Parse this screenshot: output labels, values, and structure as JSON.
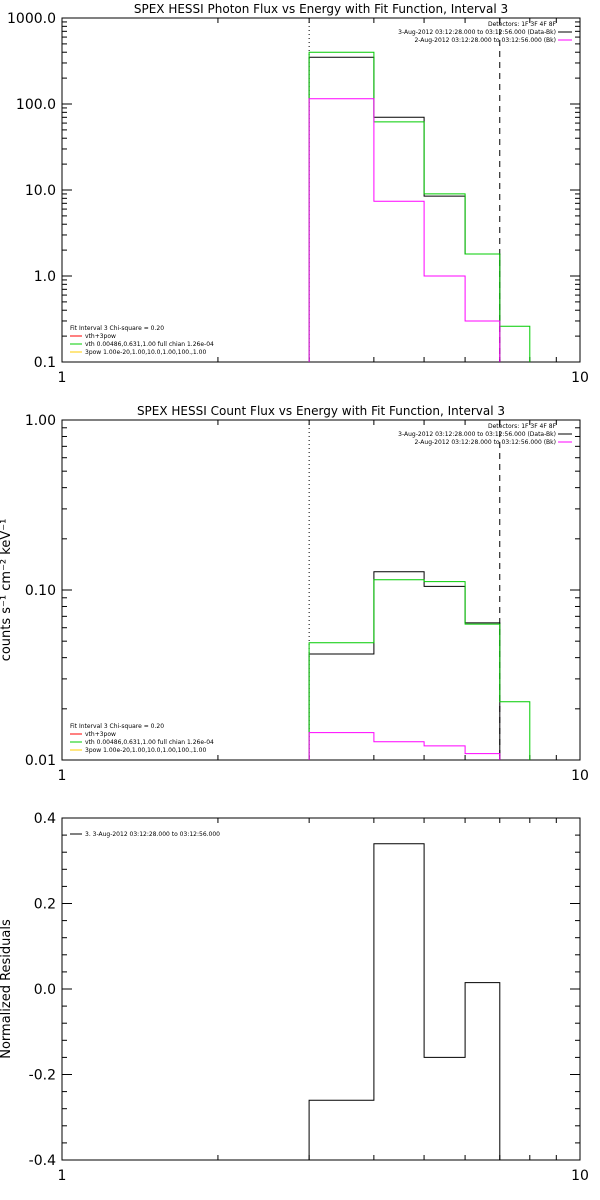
{
  "chart_data": [
    {
      "type": "line",
      "title": "SPEX HESSI Photon Flux vs Energy with Fit Function, Interval 3",
      "xscale": "log",
      "yscale": "log",
      "xlim": [
        1,
        10
      ],
      "ylim": [
        0.1,
        1000
      ],
      "xticks": [
        "1",
        "10"
      ],
      "yticks": [
        "0.1",
        "1.0",
        "10.0",
        "100.0",
        "1000.0"
      ],
      "vlines": [
        {
          "x": 3,
          "style": "dotted",
          "color": "#000000"
        },
        {
          "x": 7,
          "style": "dashed",
          "color": "#000000"
        }
      ],
      "legend_topright": {
        "lines": [
          {
            "text": "Detectors: 1F 3F 4F 8F",
            "color": null
          },
          {
            "text": "3-Aug-2012 03:12:28.000 to 03:12:56.000 (Data-Bk)",
            "color": "#000000"
          },
          {
            "text": "2-Aug-2012 03:12:28.000 to 03:12:56.000 (Bk)",
            "color": "#ff00ff"
          }
        ]
      },
      "legend_bottomleft": {
        "lines": [
          {
            "text": "Fit Interval 3   Chi-square = 0.20",
            "color": null
          },
          {
            "text": "vth+3pow",
            "color": "#ff0000"
          },
          {
            "text": "vth 0.00486,0.631,1.00   full chian 1.26e-04",
            "color": "#00cc00"
          },
          {
            "text": "3pow 1.00e-20,1.00,10.0,1.00,100.,1.00",
            "color": "#ffcc00"
          }
        ]
      },
      "edges": [
        3,
        4,
        5,
        6,
        7,
        8
      ],
      "series": [
        {
          "color": "#000000",
          "values": [
            350,
            70,
            8.5,
            1.8,
            null
          ]
        },
        {
          "color": "#00cc00",
          "values": [
            400,
            62,
            9,
            1.8,
            0.26
          ]
        },
        {
          "color": "#ff00ff",
          "values": [
            115,
            7.4,
            1.0,
            0.3,
            null
          ]
        }
      ]
    },
    {
      "type": "line",
      "title": "SPEX HESSI Count Flux vs Energy with Fit Function, Interval 3",
      "ylabel": "counts s⁻¹ cm⁻² keV⁻¹",
      "xscale": "log",
      "yscale": "log",
      "xlim": [
        1,
        10
      ],
      "ylim": [
        0.01,
        1.0
      ],
      "xticks": [
        "1",
        "10"
      ],
      "yticks": [
        "0.01",
        "0.10",
        "1.00"
      ],
      "vlines": [
        {
          "x": 3,
          "style": "dotted",
          "color": "#000000"
        },
        {
          "x": 7,
          "style": "dashed",
          "color": "#000000"
        }
      ],
      "legend_topright": {
        "lines": [
          {
            "text": "Detectors: 1F 3F 4F 8F",
            "color": null
          },
          {
            "text": "3-Aug-2012 03:12:28.000 to 03:12:56.000 (Data-Bk)",
            "color": "#000000"
          },
          {
            "text": "2-Aug-2012 03:12:28.000 to 03:12:56.000 (Bk)",
            "color": "#ff00ff"
          }
        ]
      },
      "legend_bottomleft": {
        "lines": [
          {
            "text": "Fit Interval 3   Chi-square = 0.20",
            "color": null
          },
          {
            "text": "vth+3pow",
            "color": "#ff0000"
          },
          {
            "text": "vth 0.00486,0.631,1.00   full chian 1.26e-04",
            "color": "#00cc00"
          },
          {
            "text": "3pow 1.00e-20,1.00,10.0,1.00,100.,1.00",
            "color": "#ffcc00"
          }
        ]
      },
      "edges": [
        3,
        4,
        5,
        6,
        7,
        8
      ],
      "series": [
        {
          "color": "#000000",
          "values": [
            0.042,
            0.128,
            0.105,
            0.064,
            null
          ]
        },
        {
          "color": "#00cc00",
          "values": [
            0.049,
            0.115,
            0.112,
            0.063,
            0.022
          ]
        },
        {
          "color": "#ff00ff",
          "values": [
            0.0145,
            0.0128,
            0.0121,
            0.0109,
            null
          ]
        }
      ]
    },
    {
      "type": "line",
      "ylabel": "Normalized Residuals",
      "xscale": "log",
      "yscale": "linear",
      "xlim": [
        1,
        10
      ],
      "ylim": [
        -0.4,
        0.4
      ],
      "xticks": [
        "1",
        "10"
      ],
      "yticks": [
        "-0.4",
        "-0.2",
        "0.0",
        "0.2",
        "0.4"
      ],
      "legend_topleft": {
        "lines": [
          {
            "text": "3. 3-Aug-2012 03:12:28.000 to 03:12:56.000",
            "color": "#000000"
          }
        ]
      },
      "edges": [
        3,
        4,
        5,
        6,
        7
      ],
      "series": [
        {
          "color": "#000000",
          "values": [
            -0.26,
            0.34,
            -0.16,
            0.015
          ]
        }
      ]
    }
  ]
}
